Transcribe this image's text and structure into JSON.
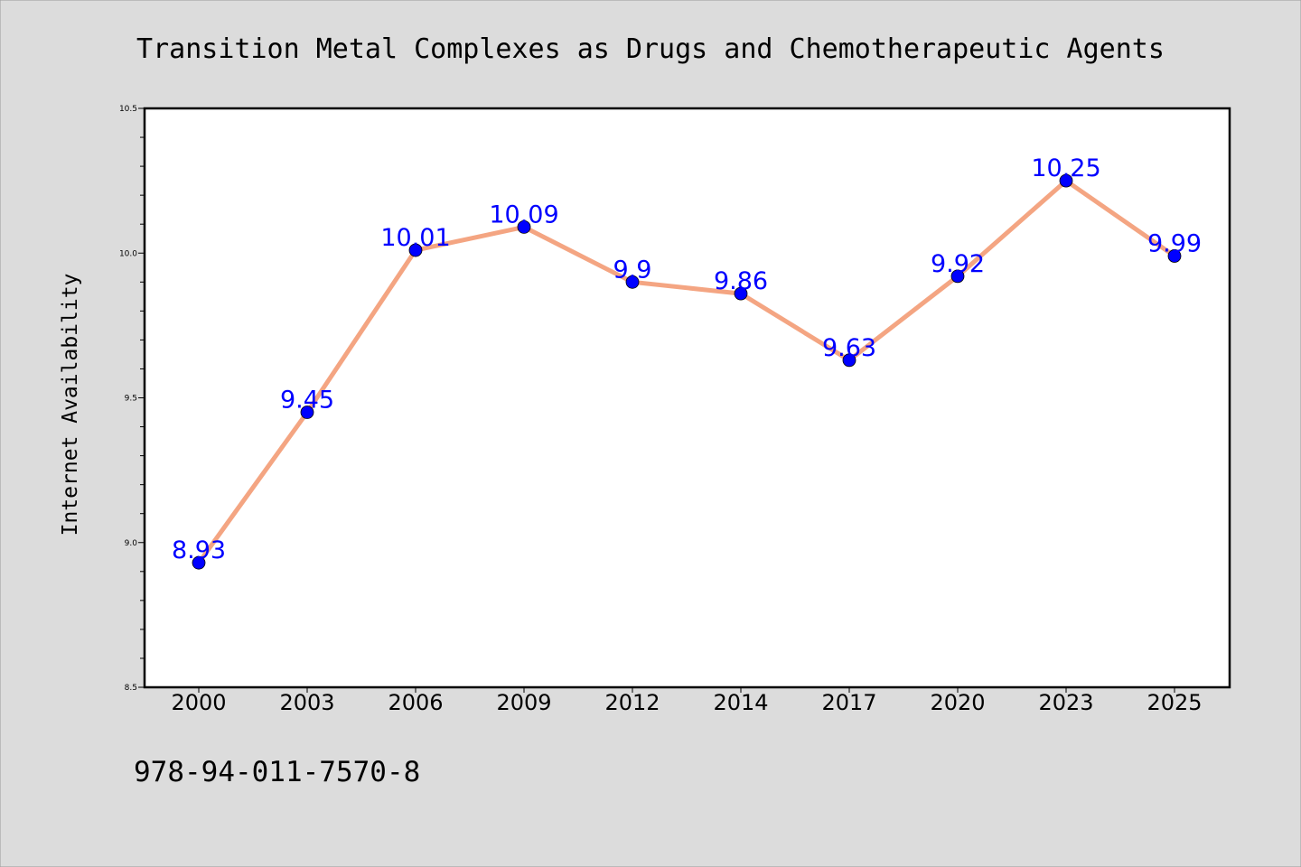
{
  "chart_data": {
    "type": "line",
    "title": "Transition Metal Complexes as Drugs and Chemotherapeutic Agents",
    "xlabel": "",
    "ylabel": "Internet Availability",
    "categories": [
      "2000",
      "2003",
      "2006",
      "2009",
      "2012",
      "2014",
      "2017",
      "2020",
      "2023",
      "2025"
    ],
    "series": [
      {
        "values": [
          8.93,
          9.45,
          10.01,
          10.09,
          9.9,
          9.86,
          9.63,
          9.92,
          10.25,
          9.99
        ],
        "labels": [
          "8.93",
          "9.45",
          "10.01",
          "10.09",
          "9.9",
          "9.86",
          "9.63",
          "9.92",
          "10.25",
          "9.99"
        ]
      }
    ],
    "ylim": [
      8.5,
      10.5
    ],
    "yticks": [
      "8.5",
      "9.0",
      "9.5",
      "10.0",
      "10.5"
    ],
    "grid": false,
    "colors": {
      "background": "#dcdcdc",
      "plot_area": "#ffffff",
      "line": "#f4a582",
      "marker": "#0000ff",
      "data_label": "#0000ff",
      "text": "#000000"
    }
  },
  "footer_text": "978-94-011-7570-8"
}
